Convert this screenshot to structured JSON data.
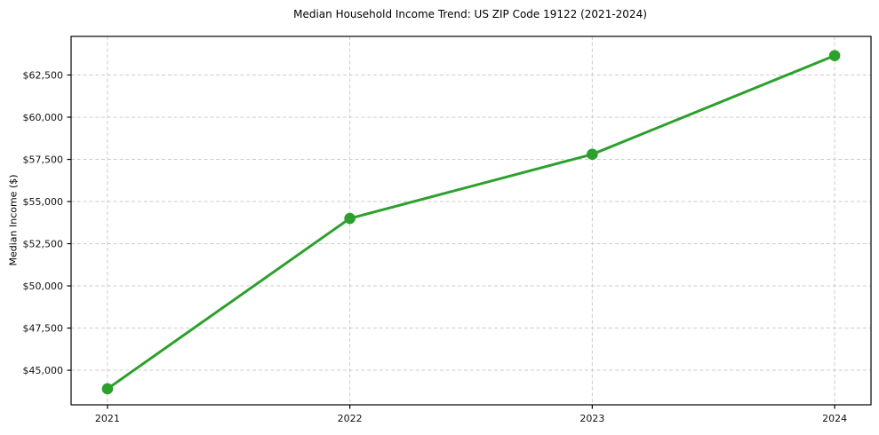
{
  "chart_data": {
    "type": "line",
    "title": "Median Household Income Trend: US ZIP Code 19122 (2021-2024)",
    "xlabel": "",
    "ylabel": "Median Income ($)",
    "x": [
      2021,
      2022,
      2023,
      2024
    ],
    "x_tick_labels": [
      "2021",
      "2022",
      "2023",
      "2024"
    ],
    "y_ticks": [
      45000,
      47500,
      50000,
      52500,
      55000,
      57500,
      60000,
      62500
    ],
    "y_tick_labels": [
      "$45,000",
      "$47,500",
      "$50,000",
      "$52,500",
      "$55,000",
      "$57,500",
      "$60,000",
      "$62,500"
    ],
    "series": [
      {
        "name": "Median household income",
        "values": [
          43900,
          54000,
          57800,
          63650
        ],
        "color": "#2ca02c",
        "marker": "circle"
      }
    ],
    "xlim": [
      2020.85,
      2024.15
    ],
    "ylim": [
      42950,
      64790
    ],
    "grid": true,
    "grid_style": "dashed",
    "legend": false
  },
  "colors": {
    "line": "#2ca02c",
    "grid": "#cccccc",
    "axis": "#000000",
    "text": "#111111",
    "background": "#ffffff"
  }
}
